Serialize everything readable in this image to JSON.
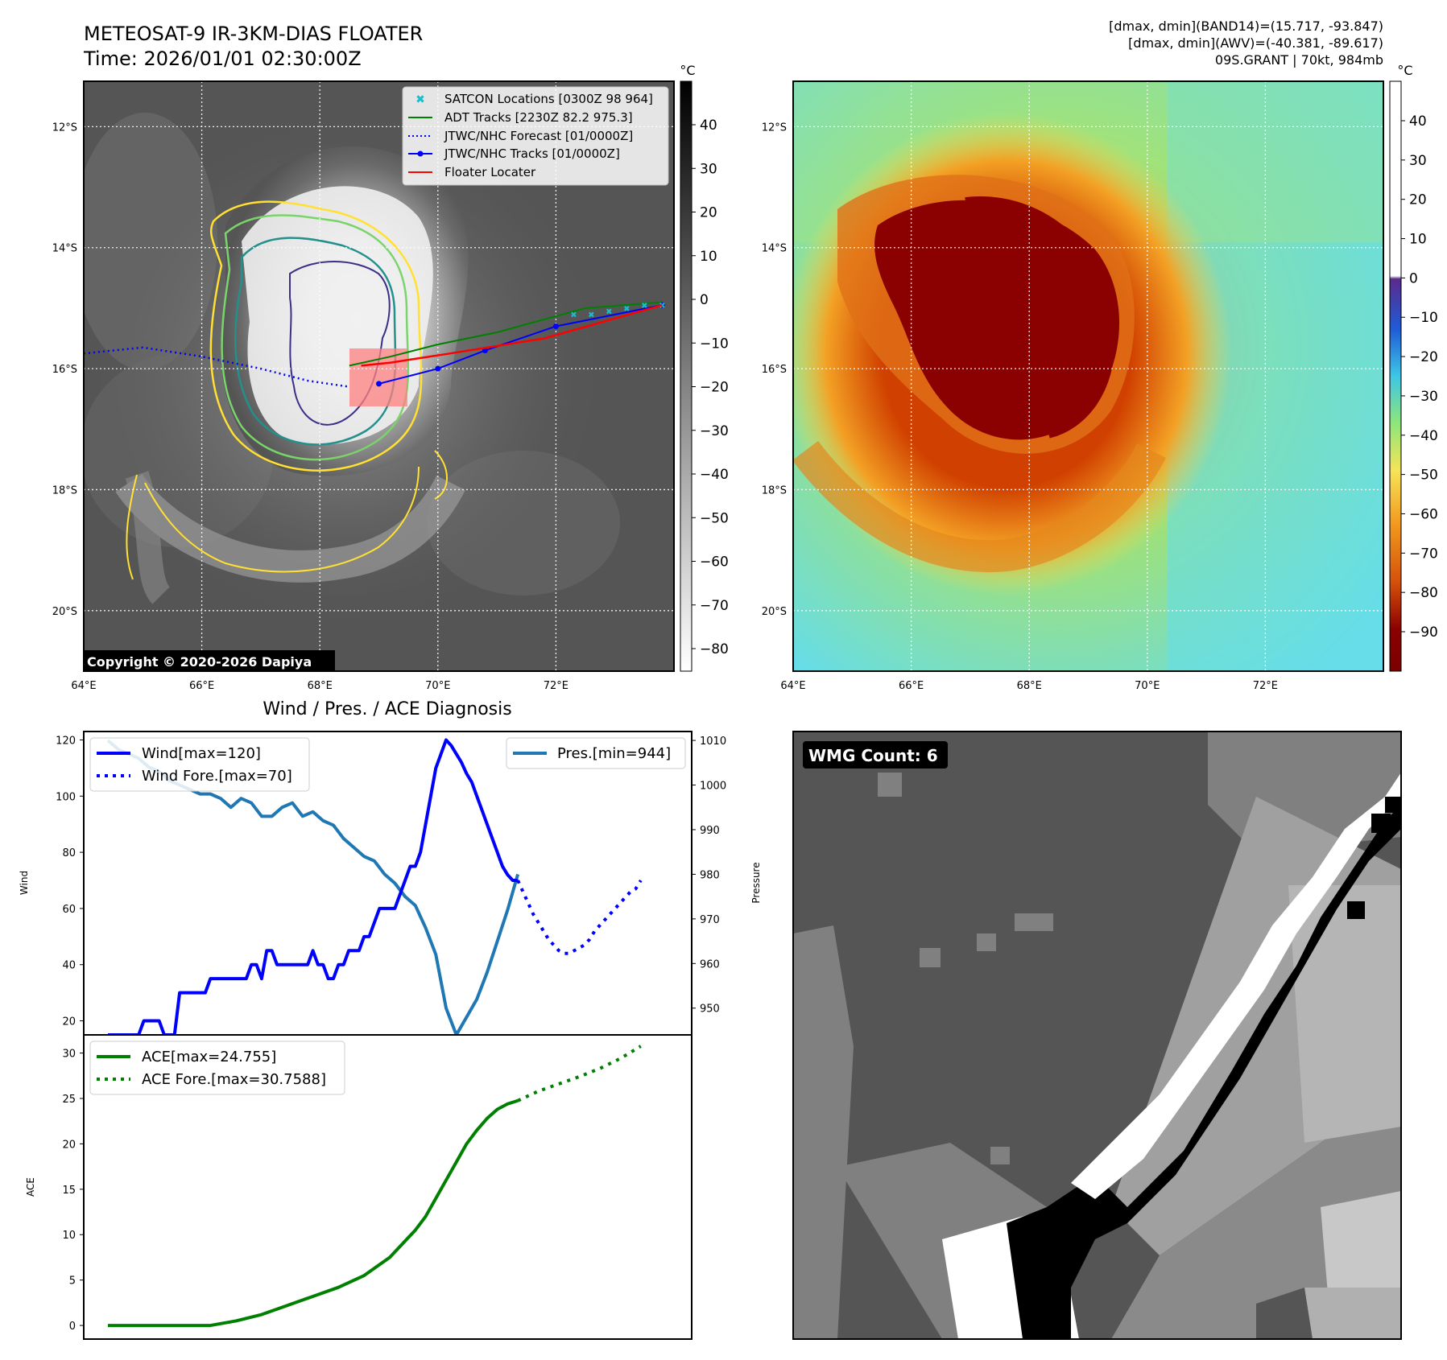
{
  "header": {
    "title": "METEOSAT-9 IR-3KM-DIAS FLOATER",
    "time": "Time: 2026/01/01 02:30:00Z",
    "info_lines": [
      "[dmax, dmin](BAND14)=(15.717, -93.847)",
      "[dmax, dmin](AWV)=(-40.381, -89.617)",
      "09S.GRANT | 70kt, 984mb"
    ]
  },
  "map_axes": {
    "lon_labels": [
      "64°E",
      "66°E",
      "68°E",
      "70°E",
      "72°E"
    ],
    "lat_labels": [
      "12°S",
      "14°S",
      "16°S",
      "18°S",
      "20°S"
    ],
    "lon_range": [
      64,
      74
    ],
    "lat_range": [
      -21,
      -11.25
    ]
  },
  "ir_panel": {
    "copyright": "Copyright © 2020-2026 Dapiya",
    "legend": [
      {
        "label": "SATCON Locations [0300Z 98 964]",
        "color": "#17becf"
      },
      {
        "label": "ADT Tracks [2230Z 82.2 975.3]",
        "color": "#008000"
      },
      {
        "label": "JTWC/NHC Forecast [01/0000Z]",
        "color": "#0000ff"
      },
      {
        "label": "JTWC/NHC Tracks [01/0000Z]",
        "color": "#0000ff"
      },
      {
        "label": "Floater Locater",
        "color": "#ff0000"
      }
    ],
    "colorbar": {
      "unit": "°C",
      "ticks": [
        "40",
        "30",
        "20",
        "10",
        "0",
        "−10",
        "−20",
        "−30",
        "−40",
        "−50",
        "−60",
        "−70",
        "−80"
      ]
    },
    "forecast_track": [
      [
        64,
        15.75
      ],
      [
        65,
        15.65
      ],
      [
        66,
        15.8
      ],
      [
        67,
        16.0
      ],
      [
        67.8,
        16.2
      ],
      [
        68.5,
        16.3
      ]
    ],
    "jtwc_track": [
      [
        69,
        16.25
      ],
      [
        70,
        16.0
      ],
      [
        70.8,
        15.7
      ],
      [
        72,
        15.3
      ],
      [
        73.8,
        14.95
      ]
    ],
    "adt_track": [
      [
        68.5,
        15.95
      ],
      [
        69.2,
        15.8
      ],
      [
        70,
        15.6
      ],
      [
        71,
        15.4
      ],
      [
        72.5,
        15.0
      ],
      [
        73.8,
        14.9
      ]
    ],
    "satcon_points": [
      [
        72.3,
        15.1
      ],
      [
        72.6,
        15.1
      ],
      [
        72.9,
        15.05
      ],
      [
        73.2,
        15.0
      ],
      [
        73.5,
        14.95
      ],
      [
        73.8,
        14.95
      ]
    ]
  },
  "awv_panel": {
    "colorbar": {
      "unit": "°C",
      "ticks": [
        "40",
        "30",
        "20",
        "10",
        "0",
        "−10",
        "−20",
        "−30",
        "−40",
        "−50",
        "−60",
        "−70",
        "−80",
        "−90"
      ]
    }
  },
  "diagnosis": {
    "title": "Wind / Pres. / ACE Diagnosis",
    "wind_axis_label": "Wind",
    "pres_axis_label": "Pressure",
    "ace_axis_label": "ACE",
    "wind_legend": "Wind[max=120]",
    "wind_fore_legend": "Wind Fore.[max=70]",
    "pres_legend": "Pres.[min=944]",
    "ace_legend": "ACE[max=24.755]",
    "ace_fore_legend": "ACE Fore.[max=30.7588]",
    "wind_ticks": [
      "20",
      "40",
      "60",
      "80",
      "100",
      "120"
    ],
    "pres_ticks": [
      "950",
      "960",
      "970",
      "980",
      "990",
      "1000",
      "1010"
    ],
    "ace_ticks": [
      "0",
      "5",
      "10",
      "15",
      "20",
      "25",
      "30"
    ]
  },
  "wmg_panel": {
    "label": "WMG Count: 6"
  },
  "chart_data": [
    {
      "type": "line",
      "name": "wind",
      "x": [
        0,
        1,
        2,
        3,
        4,
        5,
        6,
        7,
        8,
        9,
        10,
        11,
        12,
        13,
        14,
        15,
        16,
        17,
        18,
        19,
        20,
        21,
        22,
        23,
        24,
        25,
        26,
        27,
        28,
        29,
        30,
        31,
        32,
        33,
        34,
        35,
        36,
        37,
        38,
        39,
        40,
        41,
        42,
        43,
        44,
        45,
        46,
        47,
        48,
        49,
        50,
        51,
        52,
        53,
        54,
        55,
        56,
        57,
        58,
        59,
        60,
        61,
        62,
        63,
        64,
        65,
        66,
        67,
        68,
        69,
        70,
        71,
        72,
        73,
        74,
        75,
        76,
        77,
        78,
        79,
        80
      ],
      "values": [
        15,
        15,
        15,
        15,
        15,
        15,
        15,
        20,
        20,
        20,
        20,
        15,
        15,
        15,
        30,
        30,
        30,
        30,
        30,
        30,
        35,
        35,
        35,
        35,
        35,
        35,
        35,
        35,
        40,
        40,
        35,
        45,
        45,
        40,
        40,
        40,
        40,
        40,
        40,
        40,
        45,
        40,
        40,
        35,
        35,
        40,
        40,
        45,
        45,
        45,
        50,
        50,
        55,
        60,
        60,
        60,
        60,
        65,
        70,
        75,
        75,
        80,
        90,
        100,
        110,
        115,
        120,
        118,
        115,
        112,
        108,
        105,
        100,
        95,
        90,
        85,
        80,
        75,
        72,
        70,
        70
      ],
      "ylim": [
        15,
        123
      ]
    },
    {
      "type": "line",
      "name": "wind_forecast",
      "x": [
        80,
        81,
        82,
        83,
        84,
        85,
        86,
        87,
        88,
        89,
        90,
        91,
        92,
        93,
        94,
        95,
        96,
        97,
        98,
        99,
        100,
        101,
        102,
        103,
        104
      ],
      "values": [
        70,
        66,
        62,
        58,
        55,
        52,
        49,
        47,
        45,
        44,
        44,
        45,
        46,
        47,
        49,
        52,
        54,
        56,
        58,
        60,
        62,
        64,
        66,
        67,
        70
      ],
      "ylim": [
        15,
        123
      ]
    },
    {
      "type": "line",
      "name": "pressure",
      "x": [
        0,
        2,
        4,
        6,
        8,
        10,
        12,
        14,
        16,
        18,
        20,
        22,
        24,
        26,
        28,
        30,
        32,
        34,
        36,
        38,
        40,
        42,
        44,
        46,
        48,
        50,
        52,
        54,
        56,
        58,
        60,
        62,
        64,
        66,
        68,
        70,
        72,
        74,
        76,
        78,
        80
      ],
      "values": [
        1010,
        1008,
        1007,
        1006,
        1004,
        1003,
        1001,
        1000,
        999,
        998,
        998,
        997,
        995,
        997,
        996,
        993,
        993,
        995,
        996,
        993,
        994,
        992,
        991,
        988,
        986,
        984,
        983,
        980,
        978,
        975,
        973,
        968,
        962,
        950,
        944,
        948,
        952,
        958,
        965,
        972,
        980
      ],
      "ylim": [
        944,
        1012
      ]
    },
    {
      "type": "line",
      "name": "ace",
      "x": [
        0,
        5,
        10,
        15,
        20,
        25,
        30,
        35,
        40,
        45,
        50,
        55,
        60,
        62,
        64,
        66,
        68,
        70,
        72,
        74,
        76,
        78,
        80
      ],
      "values": [
        0,
        0,
        0,
        0,
        0,
        0.5,
        1.2,
        2.2,
        3.2,
        4.2,
        5.5,
        7.5,
        10.5,
        12,
        14,
        16,
        18,
        20,
        21.5,
        22.8,
        23.8,
        24.4,
        24.755
      ],
      "ylim": [
        -1.5,
        32
      ]
    },
    {
      "type": "line",
      "name": "ace_forecast",
      "x": [
        80,
        84,
        88,
        92,
        96,
        100,
        104
      ],
      "values": [
        24.755,
        25.8,
        26.6,
        27.4,
        28.3,
        29.4,
        30.7588
      ],
      "ylim": [
        -1.5,
        32
      ]
    }
  ],
  "colors": {
    "wind": "#0000ff",
    "pressure": "#1f77b4",
    "ace": "#008000",
    "contour_yellow": "#ffe033",
    "contour_light_green": "#7bd36b",
    "contour_teal": "#23908c",
    "contour_navy": "#3b2f86"
  }
}
